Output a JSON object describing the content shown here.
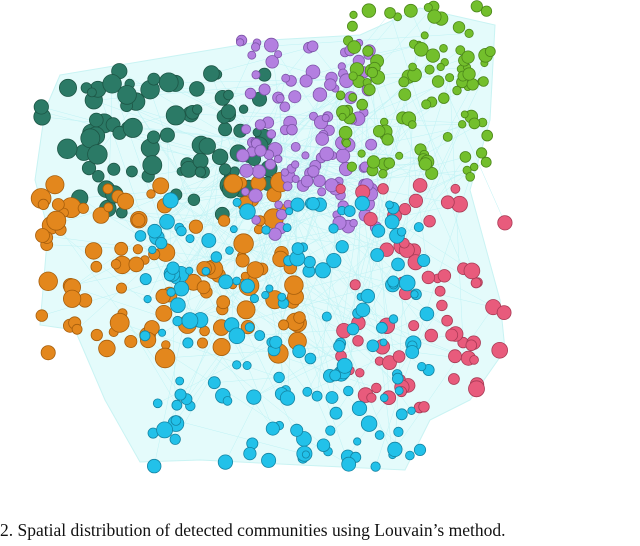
{
  "figure": {
    "caption": "2.  Spatial distribution of detected communities using Louvain’s method."
  }
}
